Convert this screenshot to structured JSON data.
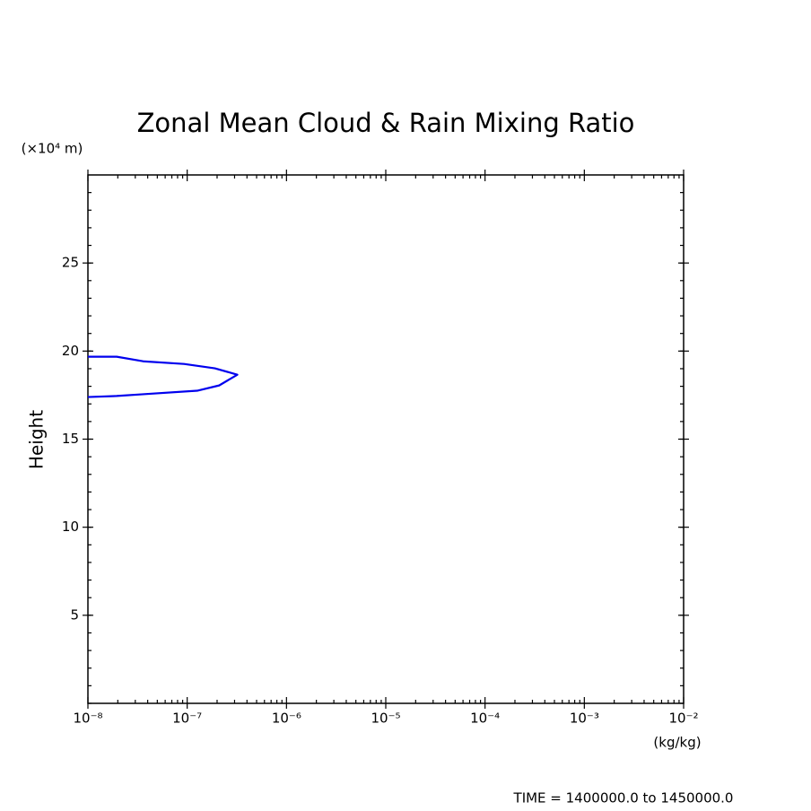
{
  "chart_data": {
    "type": "line",
    "title": "Zonal Mean Cloud & Rain Mixing Ratio",
    "y_unit_label": "(×10⁴ m)",
    "ylabel": "Height",
    "x_unit_label": "(kg/kg)",
    "footer": "TIME = 1400000.0 to 1450000.0",
    "xscale": "log",
    "x": [
      1e-08,
      1.95e-08,
      3.6e-08,
      9.3e-08,
      1.9e-07,
      3.2e-07,
      2.1e-07,
      1.26e-07,
      3.6e-08,
      1.95e-08,
      1e-08
    ],
    "values": [
      19.68,
      19.68,
      19.42,
      19.27,
      19.02,
      18.66,
      18.05,
      17.75,
      17.55,
      17.45,
      17.39
    ],
    "color": "#0000ee",
    "xlim": [
      1e-08,
      0.01
    ],
    "xticks": [
      {
        "value": 1e-08,
        "label": "10⁻⁸"
      },
      {
        "value": 1e-07,
        "label": "10⁻⁷"
      },
      {
        "value": 1e-06,
        "label": "10⁻⁶"
      },
      {
        "value": 1e-05,
        "label": "10⁻⁵"
      },
      {
        "value": 0.0001,
        "label": "10⁻⁴"
      },
      {
        "value": 0.001,
        "label": "10⁻³"
      },
      {
        "value": 0.01,
        "label": "10⁻²"
      }
    ],
    "ylim": [
      0,
      30
    ],
    "yticks": [
      5,
      10,
      15,
      20,
      25
    ],
    "grid": false
  }
}
